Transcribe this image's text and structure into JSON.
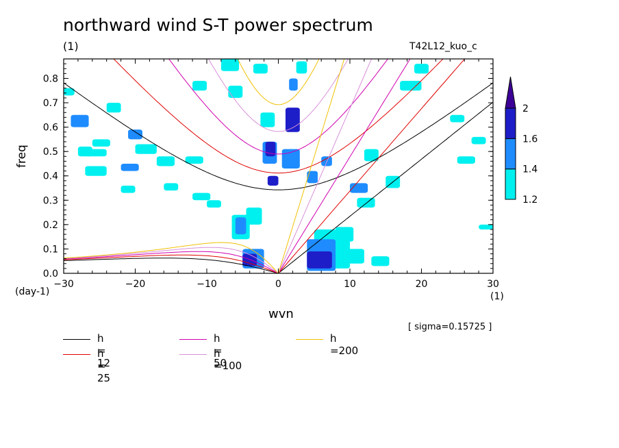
{
  "title": "northward wind S-T power spectrum",
  "subtitle": "(1)",
  "run_label": "T42L12_kuo_c",
  "xlabel": "wvn",
  "ylabel": "freq",
  "x_unit_left": "(day-1)",
  "x_unit_right": "(1)",
  "sigma_note": "[ sigma=0.15725 ]",
  "chart_data": {
    "type": "heatmap",
    "title": "northward wind S-T power spectrum",
    "xlabel": "wvn",
    "ylabel": "freq",
    "xlim": [
      -30,
      30
    ],
    "ylim": [
      0,
      0.88
    ],
    "xticks": [
      -30,
      -20,
      -10,
      0,
      10,
      20,
      30
    ],
    "xtick_labels": [
      "−30",
      "−20",
      "−10",
      "0",
      "10",
      "20",
      "30"
    ],
    "yticks": [
      0,
      0.1,
      0.2,
      0.3,
      0.4,
      0.5,
      0.6,
      0.7,
      0.8
    ],
    "ytick_labels": [
      "0.0",
      "0.1",
      "0.2",
      "0.3",
      "0.4",
      "0.5",
      "0.6",
      "0.7",
      "0.8"
    ],
    "colorbar": {
      "levels": [
        1.2,
        1.4,
        1.6,
        2
      ],
      "labels": [
        "1.2",
        "1.4",
        "1.6",
        "2"
      ],
      "colors": [
        "#00f0f0",
        "#1e8cff",
        "#1e1ec8",
        "#3c0096"
      ]
    },
    "contour_regions": [
      {
        "x": -30,
        "y": 0.73,
        "w": 1.5,
        "h": 0.03,
        "level": 1
      },
      {
        "x": -29,
        "y": 0.6,
        "w": 2.5,
        "h": 0.05,
        "level": 2
      },
      {
        "x": -28,
        "y": 0.48,
        "w": 2,
        "h": 0.04,
        "level": 1
      },
      {
        "x": -26,
        "y": 0.52,
        "w": 2.5,
        "h": 0.03,
        "level": 1
      },
      {
        "x": -24,
        "y": 0.66,
        "w": 2,
        "h": 0.04,
        "level": 1
      },
      {
        "x": -21,
        "y": 0.55,
        "w": 2,
        "h": 0.04,
        "level": 2
      },
      {
        "x": -20,
        "y": 0.49,
        "w": 3,
        "h": 0.04,
        "level": 1
      },
      {
        "x": -22,
        "y": 0.42,
        "w": 2.5,
        "h": 0.03,
        "level": 2
      },
      {
        "x": -27,
        "y": 0.48,
        "w": 3,
        "h": 0.03,
        "level": 1
      },
      {
        "x": -17,
        "y": 0.44,
        "w": 2.5,
        "h": 0.04,
        "level": 1
      },
      {
        "x": -16,
        "y": 0.34,
        "w": 2,
        "h": 0.03,
        "level": 1
      },
      {
        "x": -22,
        "y": 0.33,
        "w": 2,
        "h": 0.03,
        "level": 1
      },
      {
        "x": -27,
        "y": 0.4,
        "w": 3,
        "h": 0.04,
        "level": 1
      },
      {
        "x": -13,
        "y": 0.45,
        "w": 2.5,
        "h": 0.03,
        "level": 1
      },
      {
        "x": -12,
        "y": 0.3,
        "w": 2.5,
        "h": 0.03,
        "level": 1
      },
      {
        "x": -10,
        "y": 0.27,
        "w": 2,
        "h": 0.03,
        "level": 1
      },
      {
        "x": -8,
        "y": 0.83,
        "w": 2.5,
        "h": 0.06,
        "level": 1
      },
      {
        "x": -7,
        "y": 0.72,
        "w": 2,
        "h": 0.05,
        "level": 1
      },
      {
        "x": -12,
        "y": 0.75,
        "w": 2,
        "h": 0.04,
        "level": 1
      },
      {
        "x": -6.5,
        "y": 0.14,
        "w": 2.5,
        "h": 0.1,
        "level": 1
      },
      {
        "x": -6,
        "y": 0.16,
        "w": 1.5,
        "h": 0.07,
        "level": 2
      },
      {
        "x": -4.5,
        "y": 0.2,
        "w": 2.2,
        "h": 0.07,
        "level": 1
      },
      {
        "x": -5,
        "y": 0.02,
        "w": 3,
        "h": 0.08,
        "level": 2
      },
      {
        "x": -5,
        "y": 0.03,
        "w": 2,
        "h": 0.05,
        "level": 3
      },
      {
        "x": -3.5,
        "y": 0.82,
        "w": 2,
        "h": 0.04,
        "level": 1
      },
      {
        "x": -2.5,
        "y": 0.6,
        "w": 2,
        "h": 0.06,
        "level": 1
      },
      {
        "x": -2.2,
        "y": 0.45,
        "w": 2,
        "h": 0.09,
        "level": 2
      },
      {
        "x": -1.8,
        "y": 0.48,
        "w": 1.4,
        "h": 0.06,
        "level": 3
      },
      {
        "x": -1.5,
        "y": 0.36,
        "w": 1.5,
        "h": 0.04,
        "level": 3
      },
      {
        "x": 1,
        "y": 0.58,
        "w": 2,
        "h": 0.1,
        "level": 3
      },
      {
        "x": 1.5,
        "y": 0.75,
        "w": 1.2,
        "h": 0.05,
        "level": 2
      },
      {
        "x": 0.5,
        "y": 0.43,
        "w": 2.5,
        "h": 0.08,
        "level": 2
      },
      {
        "x": 2.5,
        "y": 0.82,
        "w": 1.5,
        "h": 0.05,
        "level": 1
      },
      {
        "x": 4,
        "y": 0.37,
        "w": 1.5,
        "h": 0.05,
        "level": 2
      },
      {
        "x": 6,
        "y": 0.44,
        "w": 1.5,
        "h": 0.04,
        "level": 2
      },
      {
        "x": 10,
        "y": 0.33,
        "w": 2.5,
        "h": 0.04,
        "level": 2
      },
      {
        "x": 11,
        "y": 0.27,
        "w": 2.5,
        "h": 0.04,
        "level": 1
      },
      {
        "x": 12,
        "y": 0.46,
        "w": 2,
        "h": 0.05,
        "level": 1
      },
      {
        "x": 15,
        "y": 0.35,
        "w": 2,
        "h": 0.05,
        "level": 1
      },
      {
        "x": 17,
        "y": 0.75,
        "w": 3,
        "h": 0.04,
        "level": 1
      },
      {
        "x": 19,
        "y": 0.82,
        "w": 2,
        "h": 0.04,
        "level": 1
      },
      {
        "x": 24,
        "y": 0.62,
        "w": 2,
        "h": 0.03,
        "level": 1
      },
      {
        "x": 27,
        "y": 0.53,
        "w": 2,
        "h": 0.03,
        "level": 1
      },
      {
        "x": 28,
        "y": 0.18,
        "w": 2,
        "h": 0.02,
        "level": 1
      },
      {
        "x": 25,
        "y": 0.45,
        "w": 2.5,
        "h": 0.03,
        "level": 1
      },
      {
        "x": 5,
        "y": 0.02,
        "w": 5,
        "h": 0.16,
        "level": 1
      },
      {
        "x": 4,
        "y": 0.01,
        "w": 4,
        "h": 0.13,
        "level": 2
      },
      {
        "x": 4,
        "y": 0.02,
        "w": 3.5,
        "h": 0.07,
        "level": 3
      },
      {
        "x": 8,
        "y": 0.13,
        "w": 2.5,
        "h": 0.06,
        "level": 1
      },
      {
        "x": 9,
        "y": 0.04,
        "w": 3,
        "h": 0.06,
        "level": 1
      },
      {
        "x": 13,
        "y": 0.03,
        "w": 2.5,
        "h": 0.04,
        "level": 1
      }
    ],
    "series": [
      {
        "name": "h = 12",
        "h": 12,
        "color": "#000000"
      },
      {
        "name": "h = 25",
        "h": 25,
        "color": "#e00000"
      },
      {
        "name": "h = 50",
        "h": 50,
        "color": "#d000b0"
      },
      {
        "name": "h =100",
        "h": 100,
        "color": "#d890d8"
      },
      {
        "name": "h =200",
        "h": 200,
        "color": "#f0c000"
      }
    ]
  }
}
